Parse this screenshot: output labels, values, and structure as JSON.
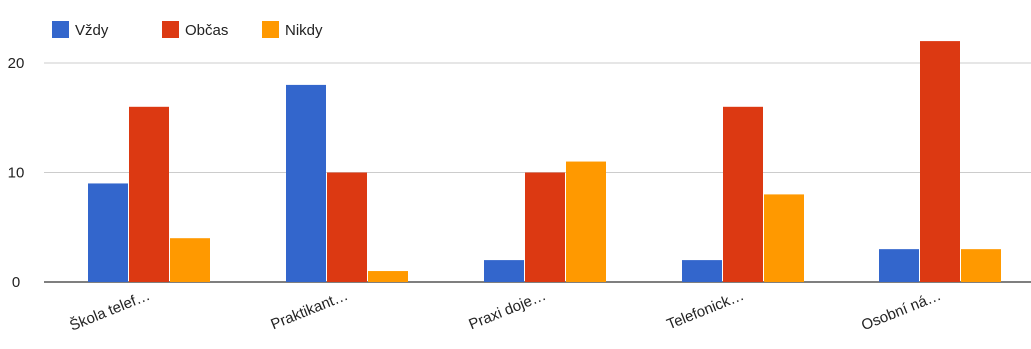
{
  "chart_data": {
    "type": "bar",
    "categories": [
      "Škola telef…",
      "Praktikant…",
      "Praxi doje…",
      "Telefonick…",
      "Osobní ná…"
    ],
    "series": [
      {
        "name": "Vždy",
        "color": "#3366cc",
        "values": [
          9,
          18,
          2,
          2,
          3
        ]
      },
      {
        "name": "Občas",
        "color": "#dc3912",
        "values": [
          16,
          10,
          10,
          16,
          22
        ]
      },
      {
        "name": "Nikdy",
        "color": "#ff9900",
        "values": [
          4,
          1,
          11,
          8,
          3
        ]
      }
    ],
    "yticks": [
      "0",
      "10",
      "20"
    ],
    "ylim": [
      0,
      25
    ],
    "grid": true,
    "legend_position": "top-left"
  }
}
